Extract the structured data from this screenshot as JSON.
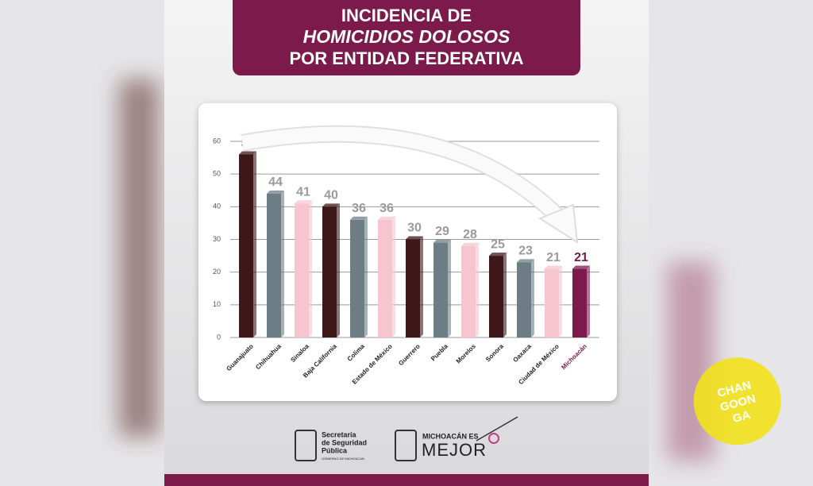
{
  "header": {
    "title_lines": [
      "INCIDENCIA DE",
      "HOMICIDIOS DOLOSOS",
      "POR ENTIDAD FEDERATIVA"
    ]
  },
  "chart_data": {
    "type": "bar",
    "categories": [
      "Guanajuato",
      "Chihuahua",
      "Sinaloa",
      "Baja California",
      "Colima",
      "Estado de México",
      "Guerrero",
      "Puebla",
      "Morelos",
      "Sonora",
      "Oaxaca",
      "Ciudad de México",
      "Michoacán"
    ],
    "values": [
      56,
      44,
      41,
      40,
      36,
      36,
      30,
      29,
      28,
      25,
      23,
      21,
      21
    ],
    "colors": [
      "#3e1719",
      "#6c7d85",
      "#f6c5cf",
      "#3e1719",
      "#6c7d85",
      "#f6c5cf",
      "#3e1719",
      "#6c7d85",
      "#f6c5cf",
      "#3e1719",
      "#6c7d85",
      "#f6c5cf",
      "#7b1a4b"
    ],
    "highlight_index": 12,
    "highlight_color": "#7b1a4b",
    "ylim": [
      0,
      60
    ],
    "yticks": [
      0,
      10,
      20,
      30,
      40,
      50,
      60
    ],
    "grid": true
  },
  "footer": {
    "logo1_lines": [
      "Secretaría",
      "de Seguridad",
      "Pública"
    ],
    "logo1_sub": "GOBIERNO DE MICHOACÁN",
    "logo2_top": "MICHOACÁN ES",
    "logo2_main": "MEJOR"
  },
  "watermark": [
    "CHAN",
    "GOON",
    "GA"
  ]
}
